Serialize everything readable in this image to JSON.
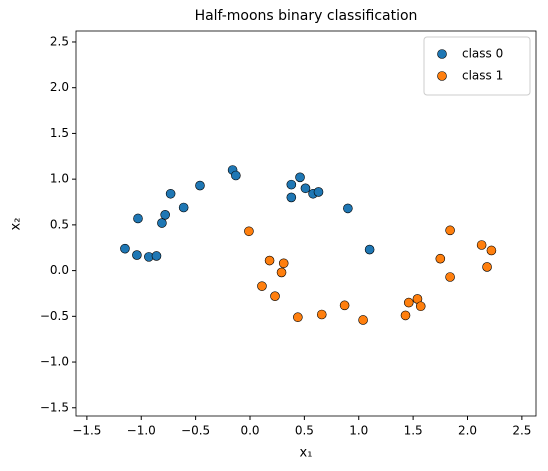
{
  "chart_data": {
    "type": "scatter",
    "title": "Half-moons binary classification",
    "x_label": "x₁",
    "y_label": "x₂",
    "xlim": [
      -1.6,
      2.63
    ],
    "ylim": [
      -1.59,
      2.62
    ],
    "xticks": [
      {
        "value": -1.5,
        "label": "−1.5"
      },
      {
        "value": -1,
        "label": "−1.0"
      },
      {
        "value": -0.5,
        "label": "−0.5"
      },
      {
        "value": 0,
        "label": "0.0"
      },
      {
        "value": 0.5,
        "label": "0.5"
      },
      {
        "value": 1,
        "label": "1.0"
      },
      {
        "value": 1.5,
        "label": "1.5"
      },
      {
        "value": 2,
        "label": "2.0"
      },
      {
        "value": 2.5,
        "label": "2.5"
      }
    ],
    "yticks": [
      {
        "value": -1.5,
        "label": "−1.5"
      },
      {
        "value": -1,
        "label": "−1.0"
      },
      {
        "value": -0.5,
        "label": "−0.5"
      },
      {
        "value": 0,
        "label": "0.0"
      },
      {
        "value": 0.5,
        "label": "0.5"
      },
      {
        "value": 1,
        "label": "1.0"
      },
      {
        "value": 1.5,
        "label": "1.5"
      },
      {
        "value": 2,
        "label": "2.0"
      },
      {
        "value": 2.5,
        "label": "2.5"
      }
    ],
    "legend": "upper right",
    "series": [
      {
        "name": "class 0",
        "color": "#1f77b4",
        "x": [
          -1.15,
          -1.03,
          -1.04,
          -0.93,
          -0.86,
          -0.81,
          -0.78,
          -0.73,
          -0.61,
          -0.46,
          -0.16,
          -0.13,
          0.38,
          0.46,
          0.51,
          0.58,
          0.63,
          0.38,
          0.9,
          1.1
        ],
        "values": [
          0.24,
          0.57,
          0.17,
          0.15,
          0.16,
          0.52,
          0.61,
          0.84,
          0.69,
          0.93,
          1.1,
          1.04,
          0.94,
          1.02,
          0.9,
          0.84,
          0.86,
          0.8,
          0.68,
          0.23
        ]
      },
      {
        "name": "class 1",
        "color": "#ff7f0e",
        "x": [
          -0.01,
          0.18,
          0.31,
          0.29,
          0.11,
          0.23,
          0.44,
          0.66,
          0.87,
          1.04,
          1.43,
          1.46,
          1.54,
          1.57,
          1.75,
          1.84,
          1.84,
          2.13,
          2.18,
          2.22
        ],
        "values": [
          0.43,
          0.11,
          0.08,
          -0.02,
          -0.17,
          -0.28,
          -0.51,
          -0.48,
          -0.38,
          -0.54,
          -0.49,
          -0.35,
          -0.31,
          -0.39,
          0.13,
          0.44,
          -0.07,
          0.28,
          0.04,
          0.22
        ]
      }
    ]
  }
}
